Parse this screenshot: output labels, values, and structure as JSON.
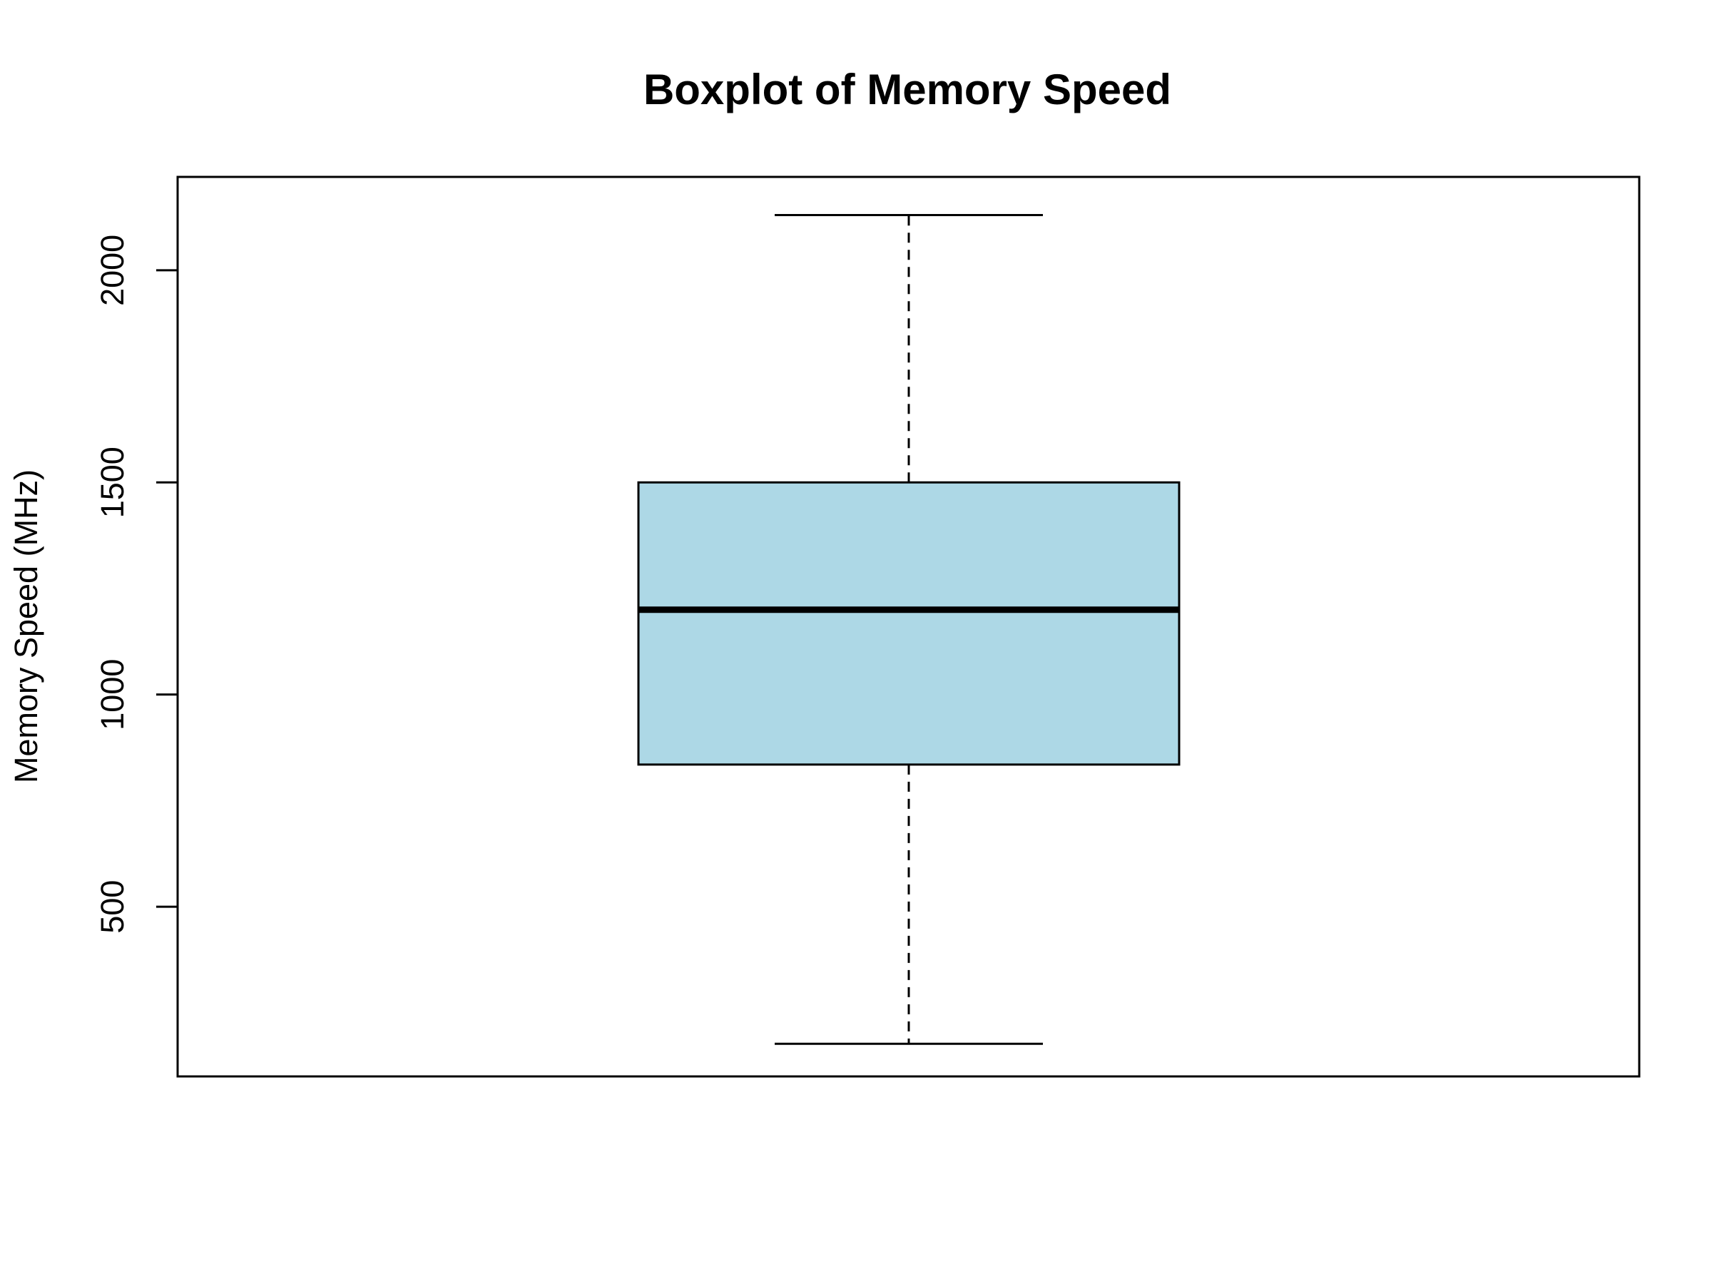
{
  "chart_data": {
    "type": "boxplot",
    "title": "Boxplot of Memory Speed",
    "xlabel": "",
    "ylabel": "Memory Speed (MHz)",
    "ylim": [
      100,
      2220
    ],
    "yticks": [
      500,
      1000,
      1500,
      2000
    ],
    "grid": false,
    "box": {
      "min": 177,
      "q1": 835,
      "median": 1200,
      "q3": 1500,
      "max": 2130,
      "fill_color": "#ADD8E6"
    }
  }
}
